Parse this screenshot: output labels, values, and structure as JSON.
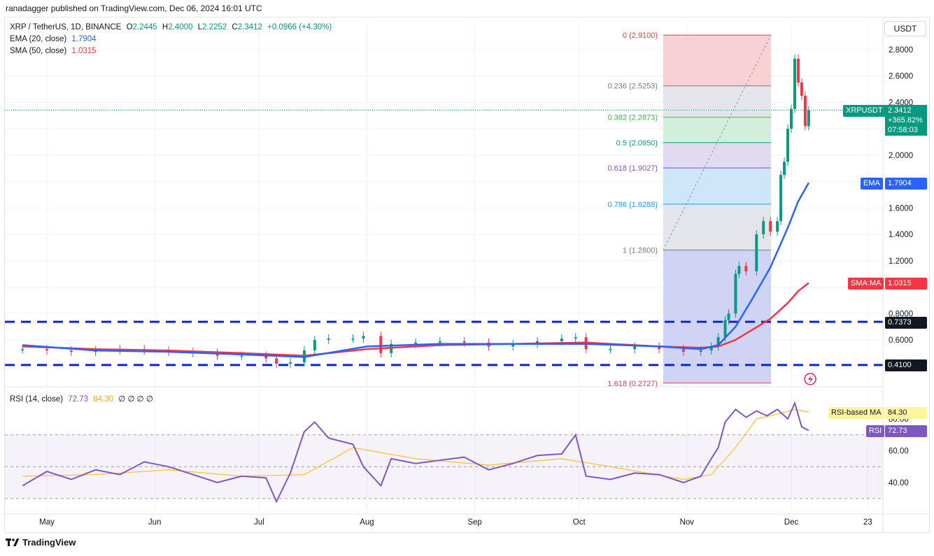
{
  "header": {
    "publisher_line": "ranadagger published on TradingView.com, Dec 06, 2024 16:01 UTC"
  },
  "legend": {
    "symbol": "XRP / TetherUS, 1D, BINANCE",
    "o_label": "O",
    "o": "2.2445",
    "h_label": "H",
    "h": "2.4000",
    "l_label": "L",
    "l": "2.2252",
    "c_label": "C",
    "c": "2.3412",
    "change": "+0.0966 (+4.30%)",
    "ema_label": "EMA (20, close)",
    "ema_value": "1.7904",
    "sma_label": "SMA (50, close)",
    "sma_value": "1.0315"
  },
  "toolbar": {
    "unit_button": "USDT"
  },
  "price_tags": {
    "symbol": "XRPUSDT",
    "price": "2.3412",
    "change_pct": "+365.82%",
    "countdown": "07:58:03",
    "ema_tag": "EMA",
    "ema_value": "1.7904",
    "sma_tag": "SMA:MA",
    "sma_value": "1.0315",
    "support_high": "0.7373",
    "support_low": "0.4100"
  },
  "rsi_panel": {
    "label": "RSI (14, close)",
    "rsi_value": "72.73",
    "ma_value": "84.30",
    "zeros": "∅ ∅ ∅ ∅",
    "rsi_tag": "RSI",
    "ma_tag": "RSI-based MA",
    "ticks": [
      "80.00",
      "60.00",
      "40.00"
    ]
  },
  "footer": {
    "brand": "TradingView",
    "logo": "tradingview-logo"
  },
  "colors": {
    "up": "#089981",
    "down": "#f23645",
    "ema": "#2962ff",
    "sma": "#f23645",
    "rsi": "#7e57c2",
    "rsi_ma": "#fbc02d",
    "support": "#0d23d6"
  },
  "chart_data": {
    "type": "line",
    "title": "XRP / TetherUS, 1D, BINANCE",
    "x_tick_labels": [
      "May",
      "Jun",
      "Jul",
      "Aug",
      "Sep",
      "Oct",
      "Nov",
      "Dec",
      "23"
    ],
    "y_tick_labels": [
      "2.8000",
      "2.6000",
      "2.4000",
      "2.0000",
      "1.6000",
      "1.4000",
      "1.2000",
      "0.8000",
      "0.6000"
    ],
    "ylim": [
      0.26,
      2.98
    ],
    "scale": "linear",
    "grid": true,
    "fib_levels": [
      {
        "label": "0 (2.9100)",
        "value": 2.91
      },
      {
        "label": "0.236 (2.5253)",
        "value": 2.5253
      },
      {
        "label": "0.382 (2.2873)",
        "value": 2.2873
      },
      {
        "label": "0.5 (2.0950)",
        "value": 2.095
      },
      {
        "label": "0.618 (1.9027)",
        "value": 1.9027
      },
      {
        "label": "0.786 (1.6288)",
        "value": 1.6288
      },
      {
        "label": "1 (1.2800)",
        "value": 1.28
      },
      {
        "label": "1.618 (0.2727)",
        "value": 0.2727
      }
    ],
    "support_levels": [
      0.7373,
      0.41
    ],
    "series": [
      {
        "name": "XRPUSDT",
        "x": [
          "Apr 24",
          "May 1",
          "May 8",
          "May 15",
          "May 22",
          "May 29",
          "Jun 5",
          "Jun 12",
          "Jun 19",
          "Jun 26",
          "Jul 3",
          "Jul 6",
          "Jul 10",
          "Jul 14",
          "Jul 17",
          "Jul 21",
          "Jul 28",
          "Jul 31",
          "Aug 5",
          "Aug 8",
          "Aug 15",
          "Aug 22",
          "Aug 29",
          "Sep 5",
          "Sep 12",
          "Sep 19",
          "Sep 26",
          "Sep 30",
          "Oct 3",
          "Oct 10",
          "Oct 17",
          "Oct 24",
          "Oct 31",
          "Nov 5",
          "Nov 8",
          "Nov 10",
          "Nov 12",
          "Nov 13",
          "Nov 15",
          "Nov 16",
          "Nov 18",
          "Nov 21",
          "Nov 23",
          "Nov 25",
          "Nov 27",
          "Nov 28",
          "Nov 29",
          "Nov 30",
          "Dec 1",
          "Dec 2",
          "Dec 3",
          "Dec 4",
          "Dec 5",
          "Dec 6"
        ],
        "values": [
          0.53,
          0.52,
          0.51,
          0.52,
          0.53,
          0.52,
          0.51,
          0.5,
          0.48,
          0.48,
          0.46,
          0.42,
          0.43,
          0.52,
          0.6,
          0.61,
          0.61,
          0.63,
          0.5,
          0.57,
          0.58,
          0.59,
          0.58,
          0.55,
          0.57,
          0.59,
          0.61,
          0.62,
          0.53,
          0.53,
          0.55,
          0.53,
          0.51,
          0.52,
          0.55,
          0.62,
          0.75,
          0.8,
          1.1,
          1.16,
          1.12,
          1.4,
          1.5,
          1.42,
          1.5,
          1.85,
          1.95,
          2.2,
          2.35,
          2.73,
          2.55,
          2.45,
          2.22,
          2.3412
        ]
      },
      {
        "name": "EMA (20, close)",
        "x": [
          "Apr 24",
          "May 15",
          "Jun 5",
          "Jun 26",
          "Jul 14",
          "Aug 1",
          "Aug 22",
          "Sep 12",
          "Oct 3",
          "Oct 24",
          "Nov 5",
          "Nov 10",
          "Nov 15",
          "Nov 20",
          "Nov 25",
          "Nov 30",
          "Dec 3",
          "Dec 6"
        ],
        "values": [
          0.56,
          0.52,
          0.51,
          0.49,
          0.47,
          0.55,
          0.57,
          0.57,
          0.57,
          0.55,
          0.53,
          0.56,
          0.7,
          0.92,
          1.15,
          1.45,
          1.65,
          1.7904
        ]
      },
      {
        "name": "SMA (50, close)",
        "x": [
          "Apr 24",
          "May 15",
          "Jun 5",
          "Jun 26",
          "Jul 14",
          "Aug 1",
          "Aug 22",
          "Sep 12",
          "Oct 3",
          "Oct 24",
          "Nov 5",
          "Nov 10",
          "Nov 15",
          "Nov 20",
          "Nov 25",
          "Nov 30",
          "Dec 3",
          "Dec 6"
        ],
        "values": [
          0.55,
          0.53,
          0.52,
          0.5,
          0.48,
          0.53,
          0.56,
          0.57,
          0.58,
          0.55,
          0.54,
          0.55,
          0.6,
          0.68,
          0.76,
          0.88,
          0.97,
          1.0315
        ]
      },
      {
        "name": "RSI (14, close)",
        "x": [
          "Apr 24",
          "May 1",
          "May 8",
          "May 15",
          "May 22",
          "May 29",
          "Jun 5",
          "Jun 12",
          "Jun 19",
          "Jun 26",
          "Jul 3",
          "Jul 6",
          "Jul 10",
          "Jul 14",
          "Jul 17",
          "Jul 21",
          "Jul 28",
          "Jul 31",
          "Aug 5",
          "Aug 8",
          "Aug 15",
          "Aug 22",
          "Aug 29",
          "Sep 5",
          "Sep 12",
          "Sep 19",
          "Sep 26",
          "Sep 30",
          "Oct 3",
          "Oct 10",
          "Oct 17",
          "Oct 24",
          "Oct 31",
          "Nov 5",
          "Nov 8",
          "Nov 10",
          "Nov 12",
          "Nov 15",
          "Nov 18",
          "Nov 21",
          "Nov 24",
          "Nov 27",
          "Nov 30",
          "Dec 2",
          "Dec 4",
          "Dec 6"
        ],
        "values": [
          38,
          47,
          42,
          48,
          45,
          53,
          50,
          45,
          40,
          44,
          43,
          28,
          46,
          72,
          78,
          68,
          64,
          50,
          38,
          55,
          52,
          54,
          56,
          48,
          52,
          57,
          58,
          70,
          44,
          42,
          46,
          45,
          40,
          44,
          55,
          62,
          78,
          86,
          81,
          85,
          82,
          86,
          80,
          90,
          75,
          72.73
        ]
      },
      {
        "name": "RSI-based MA",
        "x": [
          "Apr 24",
          "May 15",
          "Jun 5",
          "Jun 26",
          "Jul 14",
          "Jul 28",
          "Aug 15",
          "Sep 5",
          "Sep 26",
          "Oct 10",
          "Oct 31",
          "Nov 8",
          "Nov 15",
          "Nov 21",
          "Nov 27",
          "Dec 2",
          "Dec 6"
        ],
        "values": [
          44,
          45,
          48,
          44,
          45,
          62,
          55,
          51,
          55,
          50,
          42,
          45,
          62,
          80,
          83,
          86,
          84.3
        ]
      }
    ]
  }
}
